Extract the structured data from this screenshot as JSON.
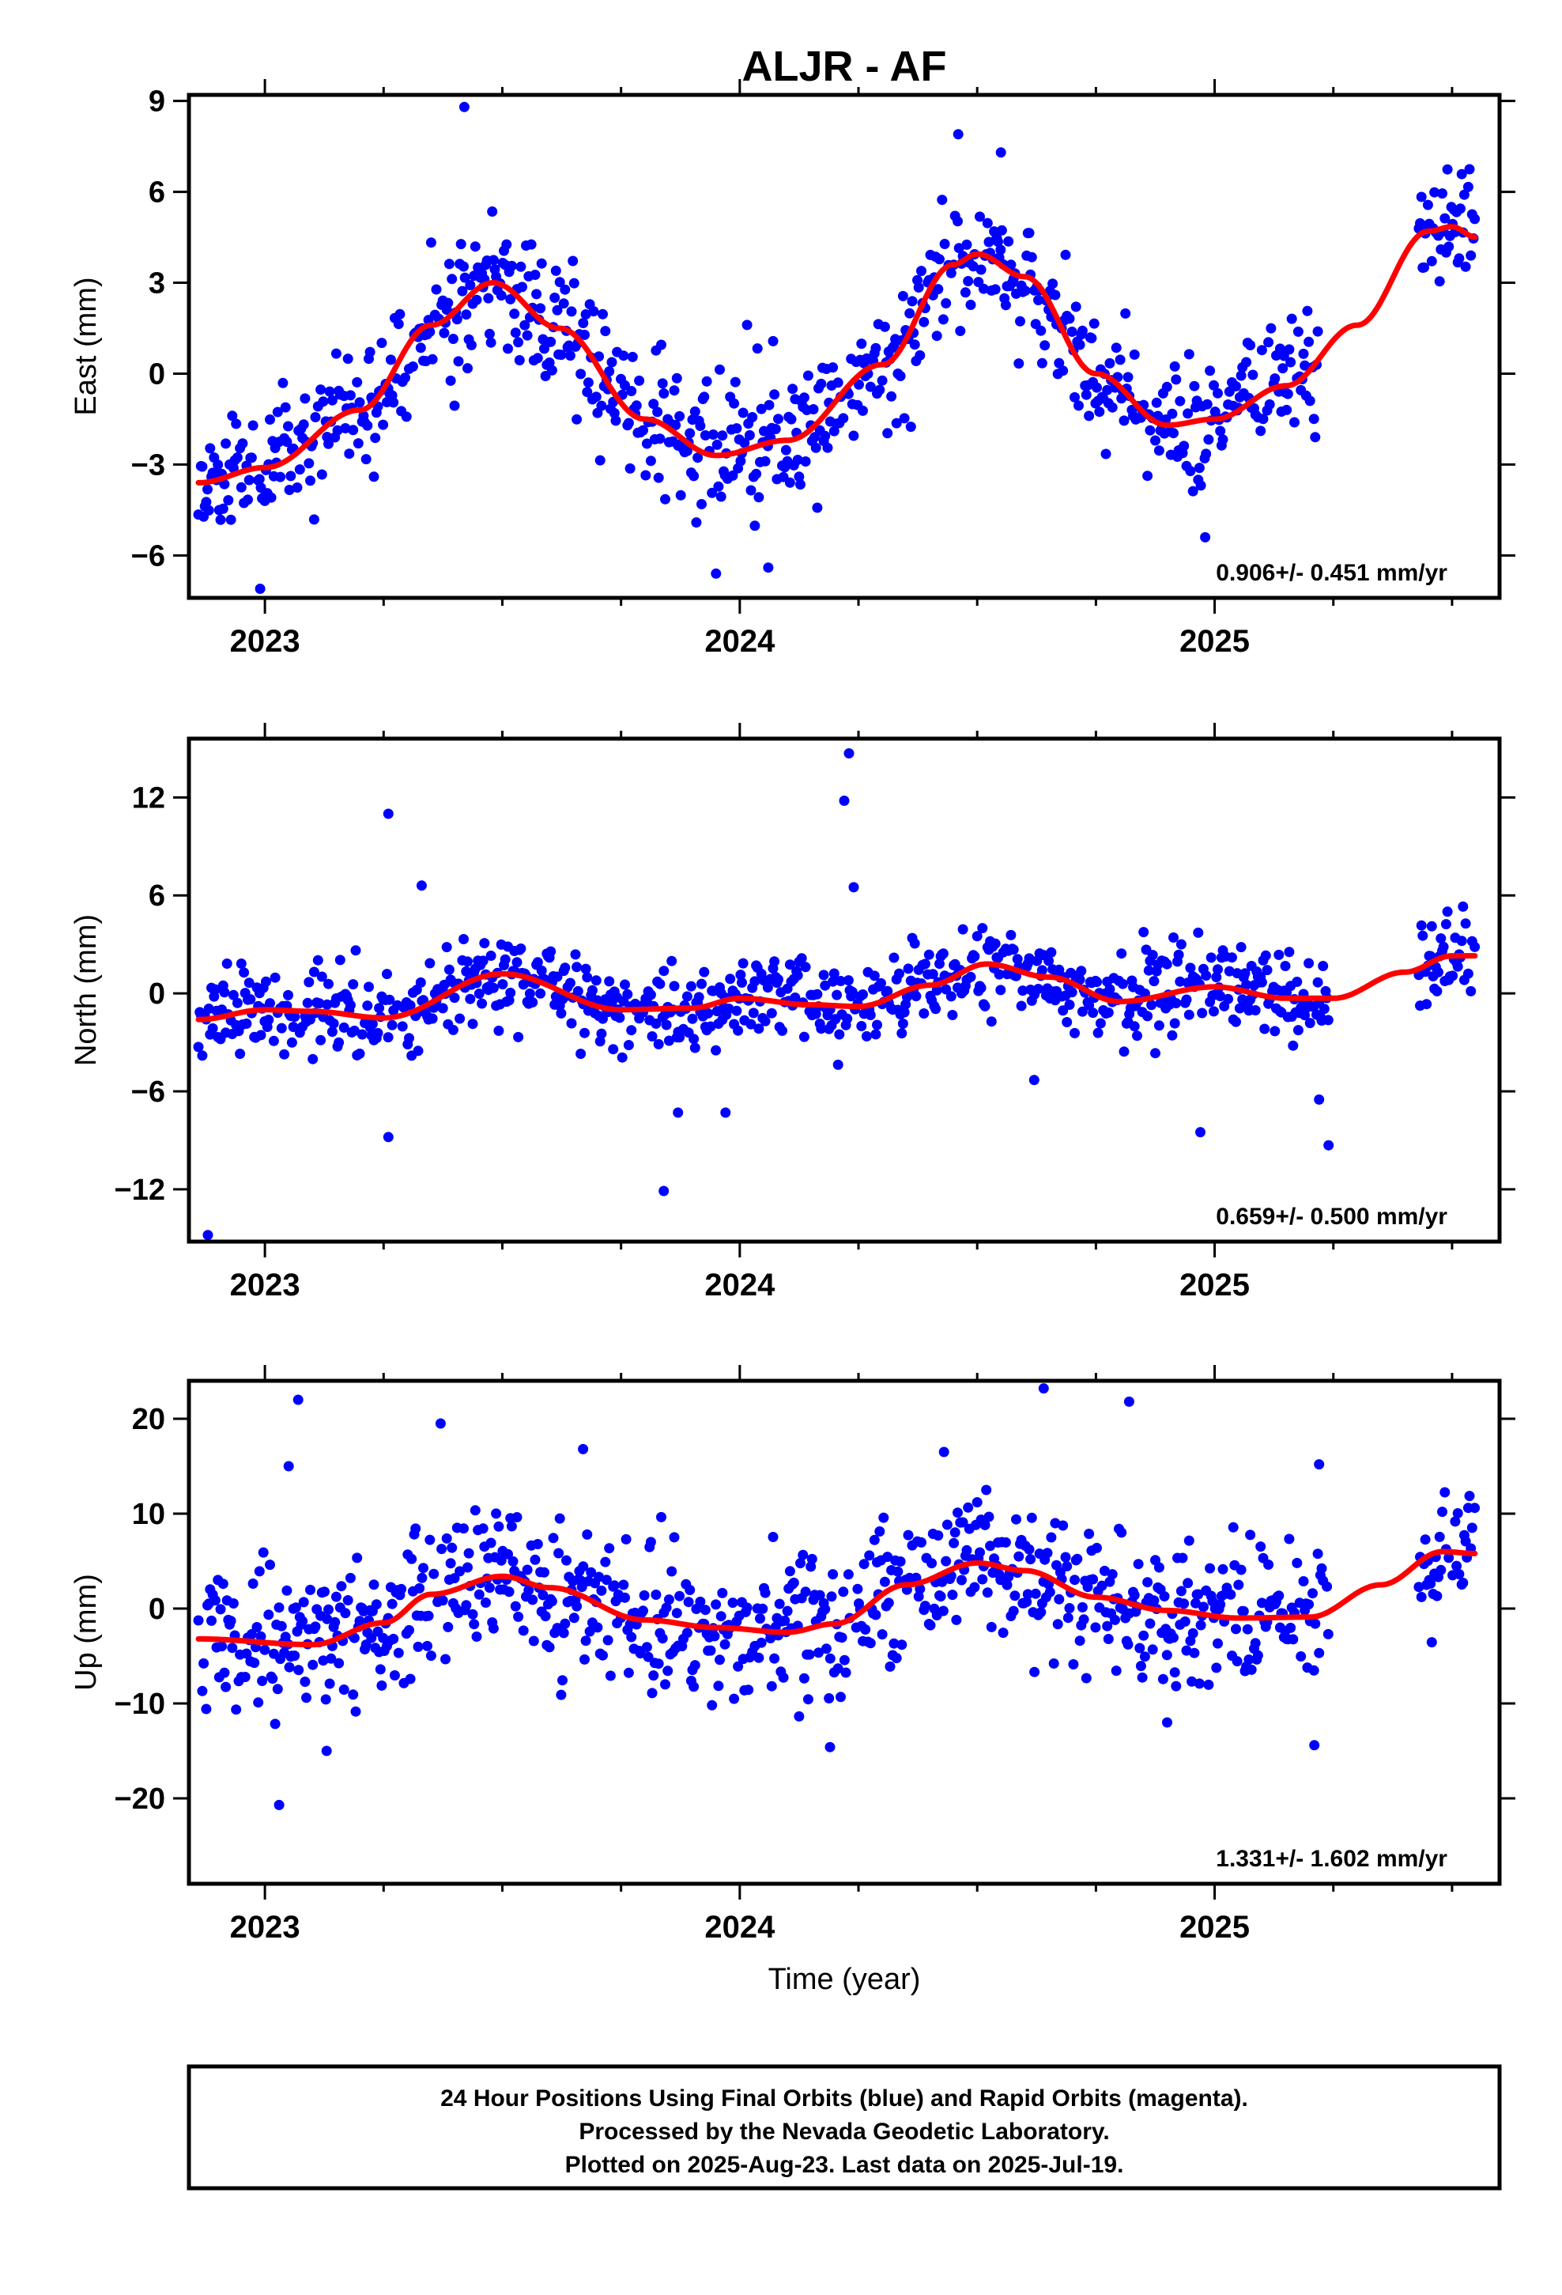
{
  "title": "ALJR - AF",
  "xlabel": "Time (year)",
  "footer": {
    "line1": "24 Hour Positions Using Final Orbits (blue) and Rapid Orbits (magenta).",
    "line2": "Processed by the Nevada Geodetic Laboratory.",
    "line3": "Plotted on 2025-Aug-23. Last data on 2025-Jul-19."
  },
  "colors": {
    "points": "#0000ff",
    "fit": "#ff0000",
    "axes": "#000000"
  },
  "chart_data": [
    {
      "type": "scatter",
      "ylabel": "East (mm)",
      "rate_text": "0.906+/- 0.451 mm/yr",
      "xlim": [
        2022.84,
        2025.6
      ],
      "ylim": [
        -7.4,
        9.2
      ],
      "yticks": [
        9,
        6,
        3,
        0,
        -3,
        -6
      ],
      "ytick_labels": [
        "9",
        "6",
        "3",
        "0",
        "−3",
        "−6"
      ],
      "xticks": [
        2023,
        2024,
        2025
      ],
      "xtick_labels": [
        "2023",
        "2024",
        "2025"
      ],
      "seed": 11,
      "noise": 1.1,
      "outliers": [
        [
          2023.42,
          8.8
        ],
        [
          2022.99,
          -7.1
        ],
        [
          2024.46,
          7.9
        ],
        [
          2024.55,
          7.3
        ],
        [
          2023.95,
          -6.6
        ],
        [
          2024.06,
          -6.4
        ],
        [
          2024.98,
          -5.4
        ]
      ],
      "fit": [
        [
          2022.86,
          -3.6
        ],
        [
          2023.0,
          -3.1
        ],
        [
          2023.2,
          -1.2
        ],
        [
          2023.35,
          1.6
        ],
        [
          2023.48,
          3.0
        ],
        [
          2023.62,
          1.5
        ],
        [
          2023.8,
          -1.5
        ],
        [
          2023.95,
          -2.7
        ],
        [
          2024.1,
          -2.2
        ],
        [
          2024.3,
          0.3
        ],
        [
          2024.45,
          3.6
        ],
        [
          2024.5,
          3.95
        ],
        [
          2024.6,
          3.2
        ],
        [
          2024.75,
          0.0
        ],
        [
          2024.9,
          -1.7
        ],
        [
          2025.0,
          -1.5
        ],
        [
          2025.15,
          -0.4
        ],
        [
          2025.3,
          1.6
        ],
        [
          2025.45,
          4.7
        ],
        [
          2025.5,
          4.85
        ],
        [
          2025.55,
          4.5
        ]
      ],
      "segments": [
        [
          2022.86,
          2025.22
        ],
        [
          2025.43,
          2025.55
        ]
      ]
    },
    {
      "type": "scatter",
      "ylabel": "North (mm)",
      "rate_text": "0.659+/- 0.500 mm/yr",
      "xlim": [
        2022.84,
        2025.6
      ],
      "ylim": [
        -15.2,
        15.6
      ],
      "yticks": [
        12,
        6,
        0,
        -6,
        -12
      ],
      "ytick_labels": [
        "12",
        "6",
        "0",
        "−6",
        "−12"
      ],
      "xticks": [
        2023,
        2024,
        2025
      ],
      "xtick_labels": [
        "2023",
        "2024",
        "2025"
      ],
      "seed": 23,
      "noise": 1.3,
      "outliers": [
        [
          2023.26,
          11.0
        ],
        [
          2024.23,
          14.7
        ],
        [
          2024.22,
          11.8
        ],
        [
          2024.24,
          6.5
        ],
        [
          2023.33,
          6.6
        ],
        [
          2022.88,
          -14.8
        ],
        [
          2023.84,
          -12.1
        ],
        [
          2023.26,
          -8.8
        ],
        [
          2024.97,
          -8.5
        ],
        [
          2025.24,
          -9.3
        ],
        [
          2023.87,
          -7.3
        ],
        [
          2023.97,
          -7.3
        ],
        [
          2025.22,
          -6.5
        ],
        [
          2024.62,
          -5.3
        ]
      ],
      "fit": [
        [
          2022.86,
          -1.6
        ],
        [
          2023.0,
          -1.0
        ],
        [
          2023.1,
          -1.1
        ],
        [
          2023.25,
          -1.5
        ],
        [
          2023.5,
          1.2
        ],
        [
          2023.75,
          -1.0
        ],
        [
          2023.9,
          -0.9
        ],
        [
          2024.0,
          -0.3
        ],
        [
          2024.15,
          -0.7
        ],
        [
          2024.25,
          -0.8
        ],
        [
          2024.4,
          0.5
        ],
        [
          2024.52,
          1.8
        ],
        [
          2024.65,
          1.0
        ],
        [
          2024.8,
          -0.5
        ],
        [
          2025.0,
          0.4
        ],
        [
          2025.15,
          -0.3
        ],
        [
          2025.25,
          -0.3
        ],
        [
          2025.4,
          1.3
        ],
        [
          2025.5,
          2.3
        ],
        [
          2025.55,
          2.3
        ]
      ],
      "segments": [
        [
          2022.86,
          2025.24
        ],
        [
          2025.43,
          2025.55
        ]
      ]
    },
    {
      "type": "scatter",
      "ylabel": "Up (mm)",
      "rate_text": "1.331+/- 1.602 mm/yr",
      "xlim": [
        2022.84,
        2025.6
      ],
      "ylim": [
        -29,
        24
      ],
      "yticks": [
        20,
        10,
        0,
        -10,
        -20
      ],
      "ytick_labels": [
        "20",
        "10",
        "0",
        "−10",
        "−20"
      ],
      "xticks": [
        2023,
        2024,
        2025
      ],
      "xtick_labels": [
        "2023",
        "2024",
        "2025"
      ],
      "seed": 37,
      "noise": 3.6,
      "outliers": [
        [
          2023.07,
          22.0
        ],
        [
          2023.37,
          19.5
        ],
        [
          2023.67,
          16.8
        ],
        [
          2024.64,
          23.2
        ],
        [
          2024.82,
          21.8
        ],
        [
          2024.43,
          16.5
        ],
        [
          2025.22,
          15.2
        ],
        [
          2023.05,
          15.0
        ],
        [
          2023.03,
          -20.7
        ],
        [
          2023.13,
          -15.0
        ],
        [
          2024.19,
          -14.6
        ],
        [
          2025.21,
          -14.4
        ],
        [
          2024.9,
          -12.0
        ]
      ],
      "fit": [
        [
          2022.86,
          -3.2
        ],
        [
          2023.1,
          -3.8
        ],
        [
          2023.25,
          -1.5
        ],
        [
          2023.35,
          1.5
        ],
        [
          2023.5,
          3.4
        ],
        [
          2023.6,
          2.2
        ],
        [
          2023.8,
          -1.2
        ],
        [
          2023.95,
          -2.0
        ],
        [
          2024.1,
          -2.5
        ],
        [
          2024.2,
          -1.6
        ],
        [
          2024.35,
          2.5
        ],
        [
          2024.5,
          4.8
        ],
        [
          2024.6,
          4.0
        ],
        [
          2024.75,
          1.2
        ],
        [
          2024.9,
          -0.2
        ],
        [
          2025.05,
          -1.0
        ],
        [
          2025.2,
          -0.9
        ],
        [
          2025.35,
          2.5
        ],
        [
          2025.48,
          6.0
        ],
        [
          2025.55,
          5.8
        ]
      ],
      "segments": [
        [
          2022.86,
          2025.24
        ],
        [
          2025.43,
          2025.55
        ]
      ]
    }
  ]
}
